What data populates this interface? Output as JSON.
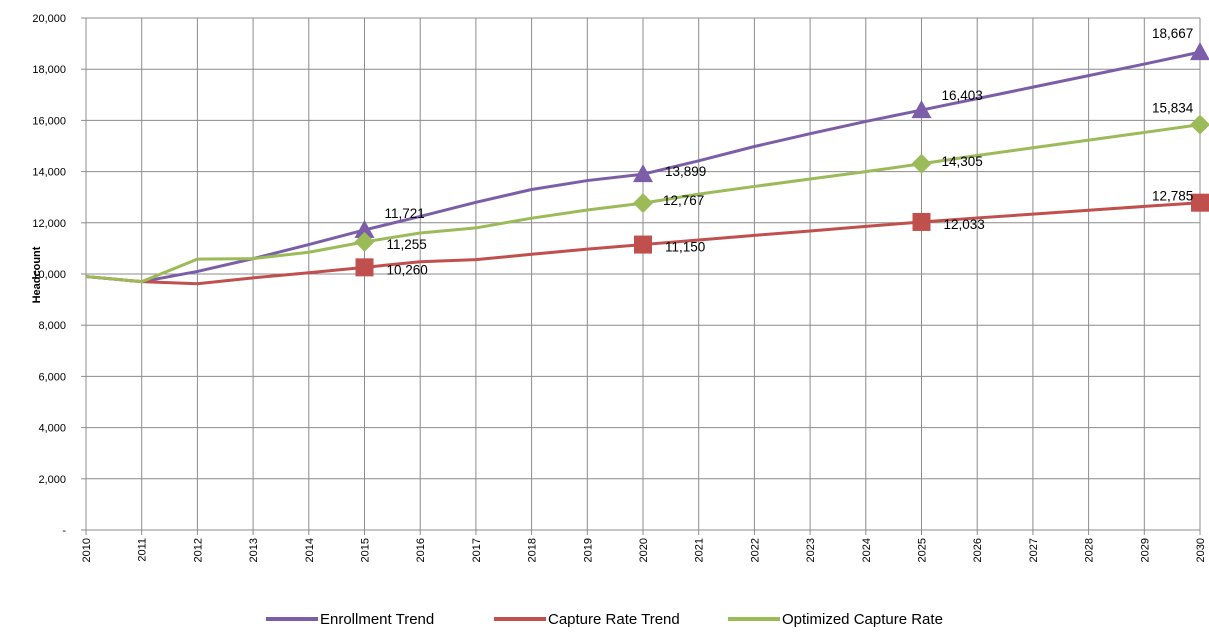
{
  "chart_data": {
    "type": "line",
    "ylabel": "Headcount",
    "xlabel": "",
    "ylim": [
      0,
      20000
    ],
    "y_ticks": [
      "-",
      "2,000",
      "4,000",
      "6,000",
      "8,000",
      "10,000",
      "12,000",
      "14,000",
      "16,000",
      "18,000",
      "20,000"
    ],
    "x": [
      "2010",
      "2011",
      "2012",
      "2013",
      "2014",
      "2015",
      "2016",
      "2017",
      "2018",
      "2019",
      "2020",
      "2021",
      "2022",
      "2023",
      "2024",
      "2025",
      "2026",
      "2027",
      "2028",
      "2029",
      "2030"
    ],
    "grid": true,
    "legend_position": "bottom",
    "series": [
      {
        "name": "Enrollment Trend",
        "color": "#7b5ea7",
        "marker": "triangle",
        "values": [
          9900,
          9700,
          10100,
          10600,
          11150,
          11721,
          12250,
          12800,
          13300,
          13650,
          13899,
          14420,
          14980,
          15480,
          15960,
          16403,
          16850,
          17300,
          17750,
          18200,
          18667
        ],
        "labels": {
          "2015": "11,721",
          "2020": "13,899",
          "2025": "16,403",
          "2030": "18,667"
        }
      },
      {
        "name": "Capture Rate Trend",
        "color": "#c0504d",
        "marker": "square",
        "values": [
          9900,
          9700,
          9620,
          9850,
          10050,
          10260,
          10480,
          10560,
          10770,
          10970,
          11150,
          11330,
          11510,
          11680,
          11860,
          12033,
          12190,
          12340,
          12490,
          12640,
          12785
        ],
        "labels": {
          "2015": "10,260",
          "2020": "11,150",
          "2025": "12,033",
          "2030": "12,785"
        }
      },
      {
        "name": "Optimized Capture Rate",
        "color": "#9bbb59",
        "marker": "diamond",
        "values": [
          9900,
          9700,
          10580,
          10600,
          10850,
          11255,
          11600,
          11800,
          12180,
          12500,
          12767,
          13120,
          13420,
          13710,
          14000,
          14305,
          14630,
          14930,
          15230,
          15530,
          15834
        ],
        "labels": {
          "2015": "11,255",
          "2020": "12,767",
          "2025": "14,305",
          "2030": "15,834"
        }
      }
    ]
  }
}
